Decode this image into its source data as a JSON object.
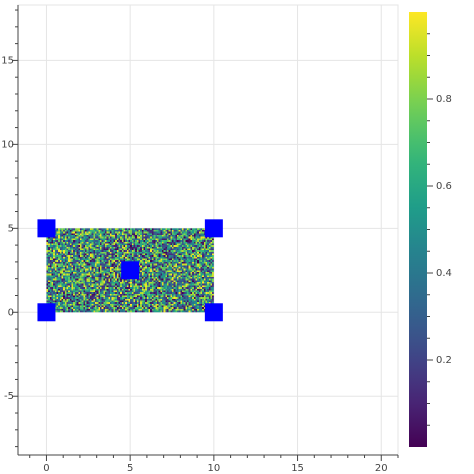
{
  "chart_data": {
    "type": "heatmap",
    "title": "",
    "xlabel": "",
    "ylabel": "",
    "xlim": [
      -1.7,
      21
    ],
    "ylim": [
      -8.5,
      18.3
    ],
    "x_ticks": [
      0,
      5,
      10,
      15,
      20
    ],
    "x_tick_labels": [
      "0",
      "5",
      "10",
      "15",
      "20"
    ],
    "y_ticks": [
      -5,
      0,
      5,
      10,
      15
    ],
    "y_tick_labels": [
      "-5",
      "0",
      "5",
      "10",
      "15"
    ],
    "grid": true,
    "image": {
      "x_range": [
        0,
        10
      ],
      "y_range": [
        0,
        5
      ],
      "columns": 100,
      "rows": 50,
      "value_distribution": "uniform random 0-1",
      "colormap": "viridis"
    },
    "markers": {
      "shape": "square",
      "color": "#0000ff",
      "points": [
        {
          "x": 0,
          "y": 0
        },
        {
          "x": 0,
          "y": 5
        },
        {
          "x": 10,
          "y": 0
        },
        {
          "x": 10,
          "y": 5
        },
        {
          "x": 5,
          "y": 2.5
        }
      ]
    },
    "colorbar": {
      "range": [
        0,
        1
      ],
      "ticks": [
        0.2,
        0.4,
        0.6,
        0.8
      ],
      "tick_labels": [
        "0.2",
        "0.4",
        "0.6",
        "0.8"
      ],
      "colormap": "viridis",
      "placement": "right"
    }
  }
}
